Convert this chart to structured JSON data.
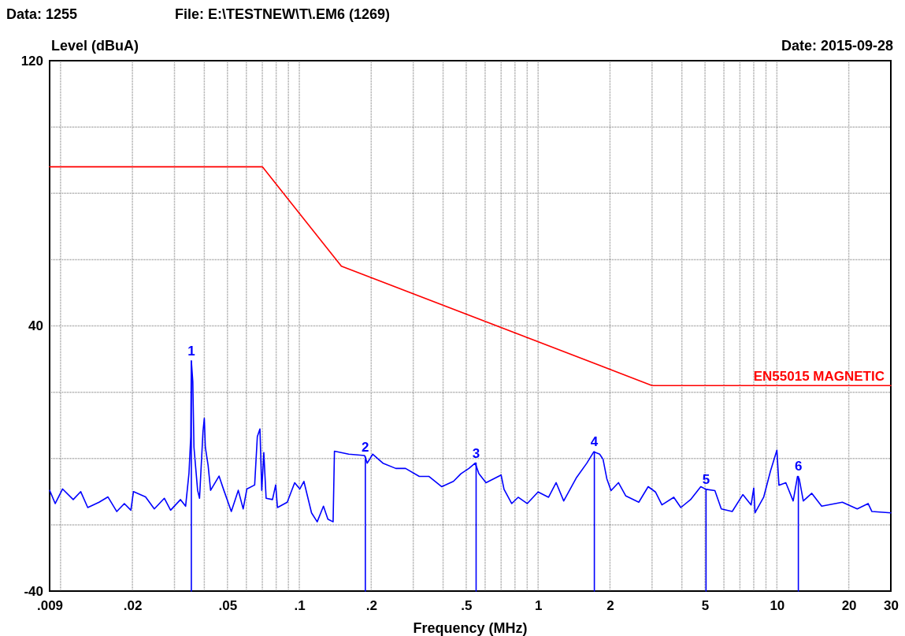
{
  "chart_data": {
    "type": "line",
    "xlabel": "Frequency (MHz)",
    "ylabel": "Level (dBuA)",
    "log": "x",
    "grid": true,
    "marker": "none",
    "annotations": [
      "Data: 1255",
      "File: E:\\TESTNEW\\T\\.EM6  (1269)",
      "Date: 2015-09-28",
      {
        "text": "1",
        "x": 0.0353,
        "y": 29.4
      },
      {
        "text": "2",
        "x": 0.189,
        "y": 0.5
      },
      {
        "text": "3",
        "x": 0.55,
        "y": -1.4
      },
      {
        "text": "4",
        "x": 1.72,
        "y": 2
      },
      {
        "text": "5",
        "x": 5.05,
        "y": -9.3
      },
      {
        "text": "6",
        "x": 12.3,
        "y": -5.4
      }
    ],
    "xlim": [
      0.009,
      30
    ],
    "xticks": [
      {
        "value": 0.009,
        "label": ".009"
      },
      {
        "value": 0.01,
        "label": null
      },
      {
        "value": 0.02,
        "label": ".02"
      },
      {
        "value": 0.03,
        "label": null
      },
      {
        "value": 0.04,
        "label": null
      },
      {
        "value": 0.05,
        "label": ".05"
      },
      {
        "value": 0.06,
        "label": null
      },
      {
        "value": 0.07,
        "label": null
      },
      {
        "value": 0.08,
        "label": null
      },
      {
        "value": 0.09,
        "label": null
      },
      {
        "value": 0.1,
        "label": ".1"
      },
      {
        "value": 0.2,
        "label": ".2"
      },
      {
        "value": 0.3,
        "label": null
      },
      {
        "value": 0.4,
        "label": null
      },
      {
        "value": 0.5,
        "label": ".5"
      },
      {
        "value": 0.6,
        "label": null
      },
      {
        "value": 0.7,
        "label": null
      },
      {
        "value": 0.8,
        "label": null
      },
      {
        "value": 0.9,
        "label": null
      },
      1,
      2,
      {
        "value": 3,
        "label": null
      },
      {
        "value": 4,
        "label": null
      },
      5,
      {
        "value": 6,
        "label": null
      },
      {
        "value": 7,
        "label": null
      },
      {
        "value": 8,
        "label": null
      },
      {
        "value": 9,
        "label": null
      },
      10,
      20,
      30
    ],
    "ylim": [
      -40,
      120
    ],
    "yticks": [
      -40,
      {
        "value": -20,
        "label": null
      },
      {
        "value": 0,
        "label": null
      },
      {
        "value": 20,
        "label": null
      },
      40,
      {
        "value": 60,
        "label": null
      },
      {
        "value": 80,
        "label": null
      },
      {
        "value": 100,
        "label": null
      },
      120
    ],
    "series": [
      {
        "color": "#0000ff",
        "x": [
          0.009,
          0.0095,
          0.0102,
          0.0113,
          0.01215,
          0.013,
          0.0145,
          0.0158,
          0.0172,
          0.0185,
          0.0197,
          0.0202,
          0.0227,
          0.0247,
          0.0272,
          0.0289,
          0.0318,
          0.0334,
          0.0345,
          0.0351,
          0.0353,
          0.0358,
          0.0362,
          0.0375,
          0.0382,
          0.0395,
          0.04,
          0.0404,
          0.0415,
          0.0425,
          0.0461,
          0.0483,
          0.0519,
          0.0555,
          0.0582,
          0.0603,
          0.065,
          0.0667,
          0.0684,
          0.0696,
          0.071,
          0.0726,
          0.0772,
          0.0796,
          0.081,
          0.089,
          0.0956,
          0.1005,
          0.1045,
          0.1125,
          0.1188,
          0.1262,
          0.1317,
          0.1385,
          0.1403,
          0.161,
          0.1876,
          0.1925,
          0.203,
          0.2238,
          0.2535,
          0.2785,
          0.318,
          0.3485,
          0.395,
          0.442,
          0.475,
          0.513,
          0.545,
          0.565,
          0.605,
          0.7,
          0.72,
          0.775,
          0.825,
          0.9,
          1.0,
          1.106,
          1.19,
          1.28,
          1.45,
          1.6,
          1.71,
          1.81,
          1.87,
          1.94,
          2.02,
          2.17,
          2.33,
          2.64,
          2.89,
          3.1,
          3.3,
          3.7,
          3.96,
          4.35,
          4.8,
          5.05,
          5.5,
          5.85,
          6.5,
          7.2,
          7.8,
          8.0,
          8.1,
          8.8,
          9.4,
          10.0,
          10.2,
          10.9,
          11.7,
          12.2,
          12.4,
          12.9,
          14.0,
          15.4,
          18.8,
          21.7,
          24.1,
          25.0,
          30
        ],
        "values": [
          -9.6,
          -13.6,
          -9.2,
          -12.4,
          -10,
          -14.8,
          -13.2,
          -11.6,
          -16,
          -13.6,
          -15.6,
          -10,
          -11.6,
          -15.2,
          -12,
          -15.6,
          -12.4,
          -14.4,
          -4.5,
          6.6,
          29.4,
          23.2,
          3.4,
          -9.6,
          -12,
          8.2,
          12.1,
          3.4,
          -2.1,
          -9.6,
          -5.3,
          -9.6,
          -16,
          -9.6,
          -15.2,
          -9.2,
          -8,
          6.6,
          8.9,
          -9.6,
          1.8,
          -12,
          -12.4,
          -8,
          -14.8,
          -13.2,
          -7.3,
          -9.2,
          -6.9,
          -16.4,
          -19.1,
          -14.4,
          -18.3,
          -19.1,
          2.2,
          1.3,
          0.9,
          -1.4,
          1.3,
          -1.4,
          -3,
          -3,
          -5.4,
          -5.4,
          -8.5,
          -6.9,
          -4.6,
          -3,
          -1.4,
          -4.6,
          -7.3,
          -5,
          -9.3,
          -13.6,
          -11.7,
          -13.6,
          -10.1,
          -11.7,
          -7.3,
          -12.8,
          -5.7,
          -1.4,
          2,
          1.3,
          -0.2,
          -6.1,
          -9.7,
          -7.3,
          -11.3,
          -13.2,
          -8.5,
          -10.1,
          -14,
          -11.7,
          -14.8,
          -12.4,
          -8.5,
          -9.3,
          -9.7,
          -15.2,
          -16,
          -10.9,
          -14,
          -8.9,
          -16.4,
          -11.7,
          -3.8,
          2.5,
          -8.1,
          -7.3,
          -12.8,
          -5.4,
          -6.1,
          -12.8,
          -10.5,
          -14.4,
          -13.2,
          -15.2,
          -13.6,
          -16,
          -16.4
        ]
      },
      {
        "color": "#0000ff",
        "x": [
          0.0353,
          0.0353
        ],
        "values": [
          -40,
          29.4
        ]
      },
      {
        "color": "#0000ff",
        "x": [
          0.189,
          0.189
        ],
        "values": [
          -40,
          0.5
        ]
      },
      {
        "color": "#0000ff",
        "x": [
          0.55,
          0.55
        ],
        "values": [
          -40,
          -1.4
        ]
      },
      {
        "color": "#0000ff",
        "x": [
          1.72,
          1.72
        ],
        "values": [
          -40,
          2
        ]
      },
      {
        "color": "#0000ff",
        "x": [
          5.05,
          5.05
        ],
        "values": [
          -40,
          -9.3
        ]
      },
      {
        "color": "#0000ff",
        "x": [
          12.3,
          12.3
        ],
        "values": [
          -40,
          -5.4
        ]
      },
      {
        "name": "EN55015 MAGNETIC",
        "color": "#ff0000",
        "x": [
          0.009,
          0.07,
          0.15,
          3,
          30
        ],
        "values": [
          88,
          88,
          58,
          22,
          22
        ]
      }
    ]
  }
}
